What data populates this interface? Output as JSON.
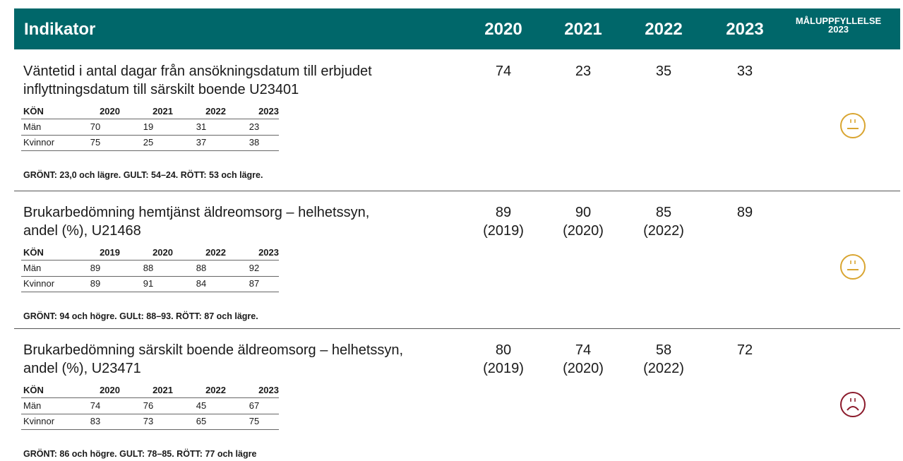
{
  "header": {
    "title": "Indikator",
    "years": [
      "2020",
      "2021",
      "2022",
      "2023"
    ],
    "goal": [
      "MÅLUPPFYLLELSE",
      "2023"
    ]
  },
  "rows": [
    {
      "title": [
        "Väntetid i antal dagar från ansökningsdatum till erbjudet",
        "inflyttningsdatum till särskilt boende U23401"
      ],
      "values": [
        {
          "value": 74
        },
        {
          "value": 23
        },
        {
          "value": 35
        },
        {
          "value": 33
        }
      ],
      "sub": {
        "header": [
          "KÖN",
          "2020",
          "2021",
          "2022",
          "2023"
        ],
        "rows": [
          [
            "Män",
            70,
            19,
            31,
            23
          ],
          [
            "Kvinnor",
            75,
            25,
            37,
            38
          ]
        ]
      },
      "criteria": "GRÖNT: 23,0 och lägre.  GULT: 54–24.  RÖTT: 53 och lägre.",
      "status": "neutral"
    },
    {
      "title": [
        "Brukarbedömning hemtjänst äldreomsorg – helhetssyn,",
        "andel (%), U21468"
      ],
      "values": [
        {
          "value": 89,
          "note": "(2019)"
        },
        {
          "value": 90,
          "note": "(2020)"
        },
        {
          "value": 85,
          "note": "(2022)"
        },
        {
          "value": 89
        }
      ],
      "sub": {
        "header": [
          "KÖN",
          "2019",
          "2020",
          "2022",
          "2023"
        ],
        "rows": [
          [
            "Män",
            89,
            88,
            88,
            92
          ],
          [
            "Kvinnor",
            89,
            91,
            84,
            87
          ]
        ]
      },
      "criteria": "GRÖNT: 94 och högre. GULt: 88–93. RÖTT: 87 och lägre.",
      "status": "neutral"
    },
    {
      "title": [
        "Brukarbedömning särskilt boende äldreomsorg – helhetssyn,",
        "andel (%), U23471"
      ],
      "values": [
        {
          "value": 80,
          "note": "(2019)"
        },
        {
          "value": 74,
          "note": "(2020)"
        },
        {
          "value": 58,
          "note": "(2022)"
        },
        {
          "value": 72
        }
      ],
      "sub": {
        "header": [
          "KÖN",
          "2020",
          "2021",
          "2022",
          "2023"
        ],
        "rows": [
          [
            "Män",
            74,
            76,
            45,
            67
          ],
          [
            "Kvinnor",
            83,
            73,
            65,
            75
          ]
        ]
      },
      "criteria": "GRÖNT: 86 och högre.  GULT: 78–85.  RÖTT: 77 och lägre",
      "status": "sad"
    }
  ]
}
